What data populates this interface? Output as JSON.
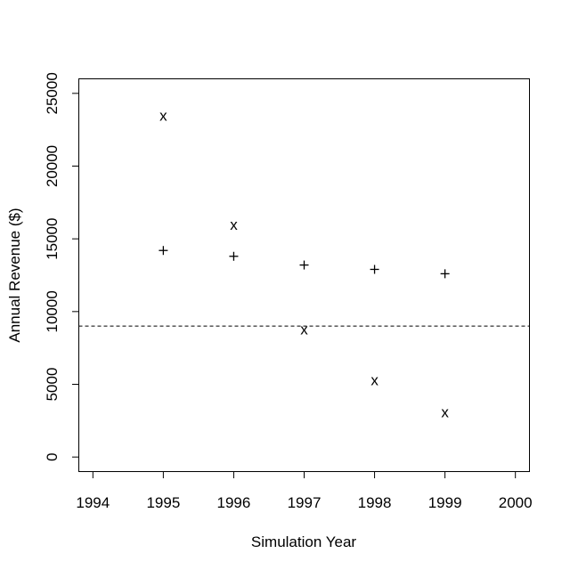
{
  "chart_data": {
    "type": "scatter",
    "xlabel": "Simulation Year",
    "ylabel": "Annual Revenue ($)",
    "xlim": [
      1993.8,
      2000.2
    ],
    "ylim": [
      -1000,
      26000
    ],
    "x_ticks": [
      1994,
      1995,
      1996,
      1997,
      1998,
      1999,
      2000
    ],
    "y_ticks": [
      0,
      5000,
      10000,
      15000,
      20000,
      25000
    ],
    "grid": false,
    "series": [
      {
        "marker": "x",
        "x": [
          1995,
          1996,
          1997,
          1998,
          1999
        ],
        "y": [
          23500,
          16000,
          8800,
          5300,
          3100
        ]
      },
      {
        "marker": "+",
        "x": [
          1995,
          1996,
          1997,
          1998,
          1999
        ],
        "y": [
          14200,
          13800,
          13200,
          12900,
          12600
        ]
      }
    ],
    "reference_line": {
      "orientation": "horizontal",
      "y": 9000,
      "style": "dashed"
    }
  }
}
